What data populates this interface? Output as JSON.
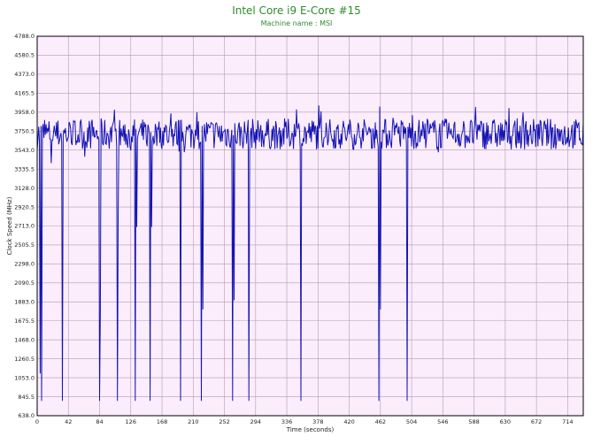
{
  "chart_data": {
    "type": "line",
    "title": "Intel Core i9 E-Core #15",
    "subtitle": "Machine name : MSI",
    "xlabel": "Time (seconds)",
    "ylabel": "Clock Speed (MHz)",
    "xlim": [
      0,
      735
    ],
    "ylim": [
      638.0,
      4788.0
    ],
    "xticks": [
      0,
      42,
      84,
      126,
      168,
      210,
      252,
      294,
      336,
      378,
      420,
      462,
      504,
      546,
      588,
      630,
      672,
      714
    ],
    "yticks": [
      "638.0",
      "845.5",
      "1053.0",
      "1260.5",
      "1468.0",
      "1675.5",
      "1883.0",
      "2090.5",
      "2298.0",
      "2505.5",
      "2713.0",
      "2920.5",
      "3128.0",
      "3335.5",
      "3543.0",
      "3750.5",
      "3958.0",
      "4165.5",
      "4373.0",
      "4580.5",
      "4788.0"
    ],
    "grid": true,
    "series_color": "#1414b4",
    "plot_background": "#fbedfb",
    "baseline_mhz": 3720,
    "noise_mhz": 170,
    "dips": [
      {
        "t": 4,
        "y": 1100
      },
      {
        "t": 6,
        "y": 800
      },
      {
        "t": 19,
        "y": 3400
      },
      {
        "t": 34,
        "y": 800
      },
      {
        "t": 64,
        "y": 3470
      },
      {
        "t": 84,
        "y": 800
      },
      {
        "t": 85,
        "y": 1800
      },
      {
        "t": 108,
        "y": 800
      },
      {
        "t": 109,
        "y": 2800
      },
      {
        "t": 132,
        "y": 800
      },
      {
        "t": 134,
        "y": 2700
      },
      {
        "t": 152,
        "y": 800
      },
      {
        "t": 154,
        "y": 2700
      },
      {
        "t": 193,
        "y": 800
      },
      {
        "t": 221,
        "y": 800
      },
      {
        "t": 223,
        "y": 1800
      },
      {
        "t": 263,
        "y": 800
      },
      {
        "t": 265,
        "y": 1900
      },
      {
        "t": 285,
        "y": 800
      },
      {
        "t": 355,
        "y": 800
      },
      {
        "t": 460,
        "y": 800
      },
      {
        "t": 462,
        "y": 1800
      },
      {
        "t": 498,
        "y": 800
      }
    ]
  }
}
